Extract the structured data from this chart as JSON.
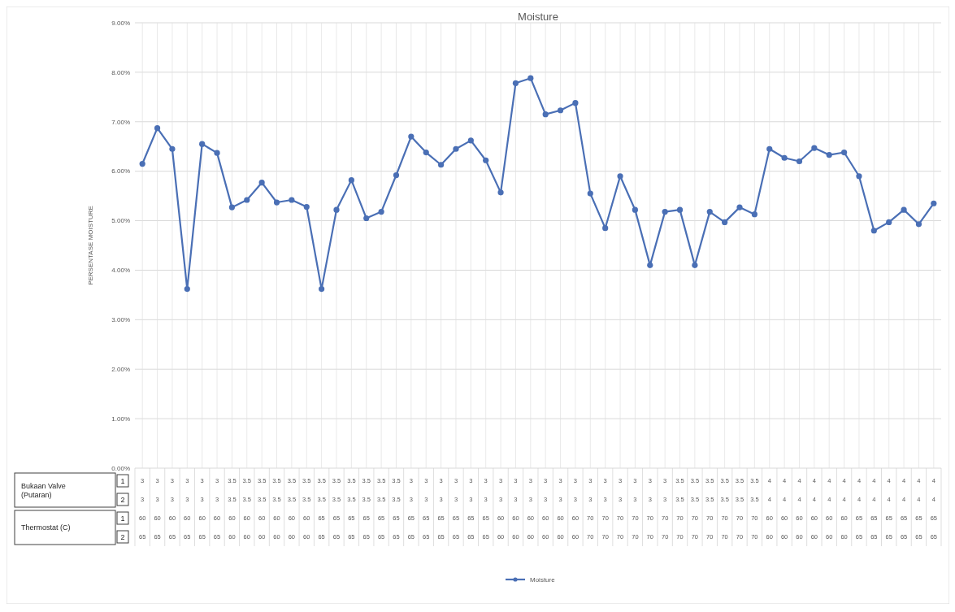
{
  "chart_data": {
    "type": "line",
    "title": "Moisture",
    "ylabel": "PERSENTASE MOISTURE",
    "categories": [
      "3\n3\n60\n65",
      "3\n3\n60\n65",
      "3\n3\n60\n65",
      "3\n3\n60\n65",
      "3\n3\n60\n65",
      "3\n3\n60\n65",
      "3.5\n3.5\n60\n60",
      "3.5\n3.5\n60\n60",
      "3.5\n3.5\n60\n60",
      "3.5\n3.5\n60\n60",
      "3.5\n3.5\n60\n60",
      "3.5\n3.5\n60\n60",
      "3.5\n3.5\n65\n65",
      "3.5\n3.5\n65\n65",
      "3.5\n3.5\n65\n65",
      "3.5\n3.5\n65\n65",
      "3.5\n3.5\n65\n65",
      "3.5\n3.5\n65\n65",
      "3\n3\n65\n65",
      "3\n3\n65\n65",
      "3\n3\n65\n65",
      "3\n3\n65\n65",
      "3\n3\n65\n65",
      "3\n3\n65\n65",
      "3\n3\n60\n60",
      "3\n3\n60\n60",
      "3\n3\n60\n60",
      "3\n3\n60\n60",
      "3\n3\n60\n60",
      "3\n3\n60\n60",
      "3\n3\n70\n70",
      "3\n3\n70\n70",
      "3\n3\n70\n70",
      "3\n3\n70\n70",
      "3\n3\n70\n70",
      "3\n3\n70\n70",
      "3.5\n3.5\n70\n70",
      "3.5\n3.5\n70\n70",
      "3.5\n3.5\n70\n70",
      "3.5\n3.5\n70\n70",
      "3.5\n3.5\n70\n70",
      "3.5\n3.5\n70\n70",
      "4\n4\n60\n60",
      "4\n4\n60\n60",
      "4\n4\n60\n60",
      "4\n4\n60\n60",
      "4\n4\n60\n60",
      "4\n4\n60\n60",
      "4\n4\n65\n65",
      "4\n4\n65\n65",
      "4\n4\n65\n65",
      "4\n4\n65\n65",
      "4\n4\n65\n65",
      "4\n4\n65\n65"
    ],
    "series": [
      {
        "name": "Moisture",
        "color": "#4a6fb5",
        "values": [
          6.15,
          6.87,
          6.45,
          3.62,
          6.55,
          6.37,
          5.27,
          5.42,
          5.77,
          5.37,
          5.42,
          5.28,
          3.62,
          5.22,
          5.82,
          5.05,
          5.18,
          5.92,
          6.7,
          6.38,
          6.13,
          6.45,
          6.62,
          6.22,
          5.57,
          7.78,
          7.88,
          7.15,
          7.23,
          7.38,
          5.55,
          4.85,
          5.9,
          5.22,
          4.1,
          5.18,
          5.22,
          4.1,
          5.18,
          4.97,
          5.27,
          5.13,
          6.45,
          6.27,
          6.2,
          6.47,
          6.33,
          6.38,
          5.9,
          4.8,
          4.97,
          5.22,
          4.93,
          5.35
        ]
      }
    ],
    "ylim": [
      0,
      9
    ],
    "yticks": [
      {
        "value": 0,
        "label": "0.00%"
      },
      {
        "value": 1,
        "label": "1.00%"
      },
      {
        "value": 2,
        "label": "2.00%"
      },
      {
        "value": 3,
        "label": "3.00%"
      },
      {
        "value": 4,
        "label": "4.00%"
      },
      {
        "value": 5,
        "label": "5.00%"
      },
      {
        "value": 6,
        "label": "6.00%"
      },
      {
        "value": 7,
        "label": "7.00%"
      },
      {
        "value": 8,
        "label": "8.00%"
      },
      {
        "value": 9,
        "label": "9.00%"
      }
    ],
    "grid": true,
    "marker": "circle",
    "line_style": "solid",
    "legend": "bottom",
    "annotations": [
      "Bukaan Valve (Putaran)",
      "1",
      "2",
      "Thermostat (C)",
      "1",
      "2"
    ]
  }
}
